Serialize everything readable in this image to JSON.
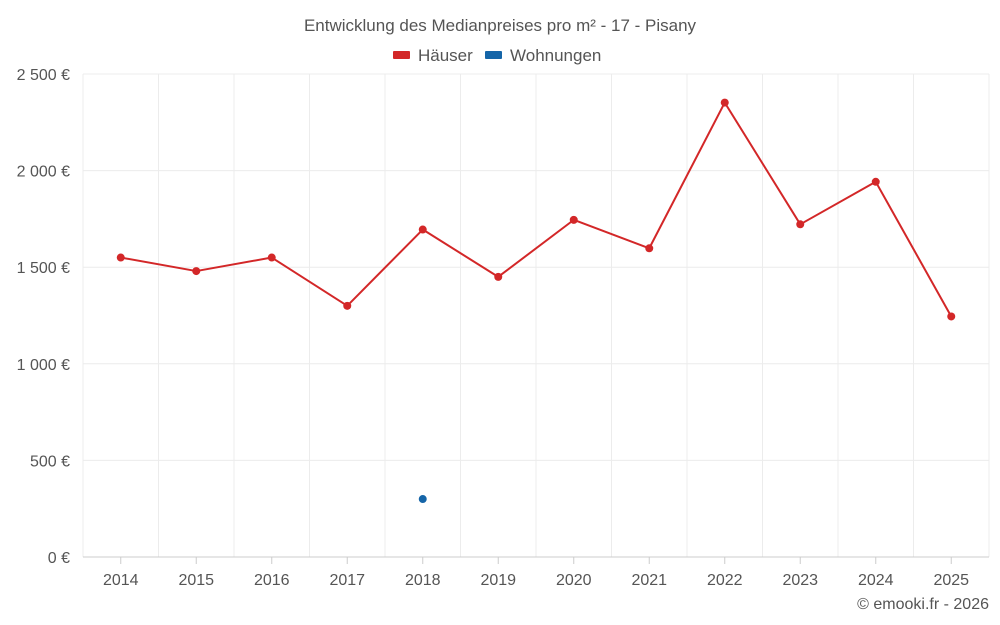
{
  "chart_data": {
    "type": "line",
    "title": "Entwicklung des Medianpreises pro m² - 17 - Pisany",
    "categories": [
      "2014",
      "2015",
      "2016",
      "2017",
      "2018",
      "2019",
      "2020",
      "2021",
      "2022",
      "2023",
      "2024",
      "2025"
    ],
    "series": [
      {
        "name": "Häuser",
        "color": "#d32728",
        "values": [
          1550,
          1480,
          1550,
          1300,
          1695,
          1450,
          1745,
          1598,
          2352,
          1722,
          1942,
          1245
        ]
      },
      {
        "name": "Wohnungen",
        "color": "#1565a8",
        "values": [
          null,
          null,
          null,
          null,
          300,
          null,
          null,
          null,
          null,
          null,
          null,
          null
        ]
      }
    ],
    "ylim": [
      0,
      2500
    ],
    "yticks": [
      0,
      500,
      1000,
      1500,
      2000,
      2500
    ],
    "ytick_labels": [
      "0 €",
      "500 €",
      "1 000 €",
      "1 500 €",
      "2 000 €",
      "2 500 €"
    ],
    "xlabel": "",
    "ylabel": "",
    "grid": true,
    "legend_position": "top-center"
  },
  "credit": "© emooki.fr - 2026"
}
